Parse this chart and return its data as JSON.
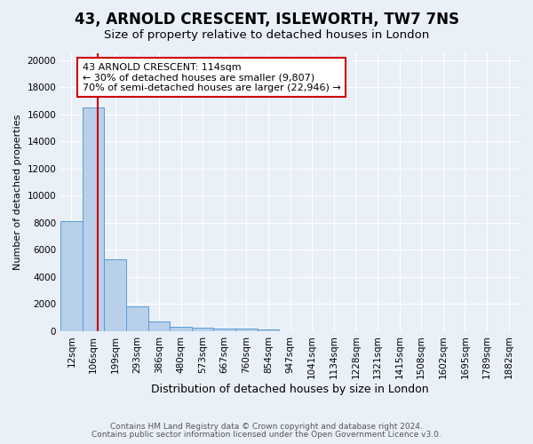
{
  "title1": "43, ARNOLD CRESCENT, ISLEWORTH, TW7 7NS",
  "title2": "Size of property relative to detached houses in London",
  "xlabel": "Distribution of detached houses by size in London",
  "ylabel": "Number of detached properties",
  "bin_labels": [
    "12sqm",
    "106sqm",
    "199sqm",
    "293sqm",
    "386sqm",
    "480sqm",
    "573sqm",
    "667sqm",
    "760sqm",
    "854sqm",
    "947sqm",
    "1041sqm",
    "1134sqm",
    "1228sqm",
    "1321sqm",
    "1415sqm",
    "1508sqm",
    "1602sqm",
    "1695sqm",
    "1789sqm",
    "1882sqm"
  ],
  "bar_heights": [
    8100,
    16500,
    5300,
    1850,
    700,
    300,
    220,
    190,
    170,
    150,
    0,
    0,
    0,
    0,
    0,
    0,
    0,
    0,
    0,
    0,
    0
  ],
  "bar_color": "#b8d0ea",
  "bar_edge_color": "#5b9bd5",
  "vline_index": 1.2,
  "vline_color": "#cc0000",
  "annotation_text": "43 ARNOLD CRESCENT: 114sqm\n← 30% of detached houses are smaller (9,807)\n70% of semi-detached houses are larger (22,946) →",
  "annotation_box_color": "#ffffff",
  "annotation_box_edge_color": "#cc0000",
  "ylim": [
    0,
    20500
  ],
  "yticks": [
    0,
    2000,
    4000,
    6000,
    8000,
    10000,
    12000,
    14000,
    16000,
    18000,
    20000
  ],
  "footer1": "Contains HM Land Registry data © Crown copyright and database right 2024.",
  "footer2": "Contains public sector information licensed under the Open Government Licence v3.0.",
  "bg_color": "#eaf0f8",
  "grid_color": "#ffffff",
  "title1_fontsize": 12,
  "title2_fontsize": 9.5,
  "annot_fontsize": 8.0,
  "ylabel_fontsize": 8,
  "xlabel_fontsize": 9,
  "tick_fontsize": 7.5,
  "footer_fontsize": 6.5
}
